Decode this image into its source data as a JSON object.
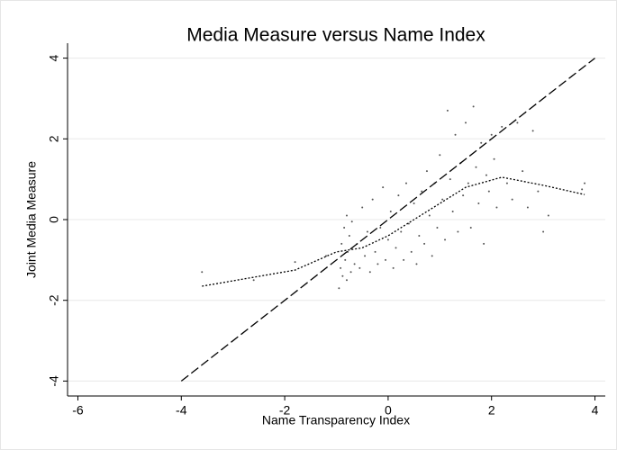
{
  "chart_data": {
    "type": "scatter",
    "title": "Media Measure versus Name Index",
    "xlabel": "Name Transparency Index",
    "ylabel": "Joint Media Measure",
    "xlim": [
      -6.2,
      4.2
    ],
    "ylim": [
      -4.37,
      4.37
    ],
    "xticks": [
      -6,
      -4,
      -2,
      0,
      2,
      4
    ],
    "yticks": [
      -4,
      -2,
      0,
      2,
      4
    ],
    "grid": true,
    "series": [
      {
        "type": "scatter",
        "color": "#555555",
        "x": [
          -3.6,
          -2.6,
          -1.8,
          -1.2,
          -0.95,
          -0.92,
          -0.9,
          -0.88,
          -0.85,
          -0.83,
          -0.8,
          -0.8,
          -0.78,
          -0.75,
          -0.72,
          -0.7,
          -0.65,
          -0.6,
          -0.55,
          -0.5,
          -0.45,
          -0.4,
          -0.35,
          -0.3,
          -0.25,
          -0.2,
          -0.15,
          -0.1,
          -0.05,
          0,
          0.05,
          0.1,
          0.15,
          0.2,
          0.25,
          0.3,
          0.35,
          0.4,
          0.45,
          0.5,
          0.55,
          0.6,
          0.65,
          0.7,
          0.75,
          0.8,
          0.85,
          0.9,
          0.95,
          1.0,
          1.05,
          1.1,
          1.15,
          1.2,
          1.25,
          1.3,
          1.35,
          1.4,
          1.45,
          1.5,
          1.55,
          1.6,
          1.65,
          1.7,
          1.75,
          1.8,
          1.85,
          1.9,
          1.95,
          2.0,
          2.05,
          2.1,
          2.2,
          2.3,
          2.4,
          2.5,
          2.6,
          2.7,
          2.8,
          2.9,
          3.0,
          3.1,
          3.8,
          3.75
        ],
        "values": [
          -1.3,
          -1.5,
          -1.05,
          -0.9,
          -1.7,
          -1.2,
          -0.6,
          -1.4,
          -0.2,
          -1.0,
          0.1,
          -1.5,
          -0.8,
          -0.4,
          -1.3,
          -0.05,
          -1.1,
          -0.6,
          -1.2,
          0.3,
          -0.9,
          -0.3,
          -1.3,
          0.5,
          -0.8,
          -1.1,
          -0.2,
          0.8,
          -1.0,
          -0.5,
          0.2,
          -1.2,
          -0.7,
          0.6,
          -0.3,
          -1.0,
          0.9,
          -0.1,
          -0.8,
          0.4,
          -1.1,
          -0.4,
          0.7,
          -0.6,
          1.2,
          0.1,
          -0.9,
          0.9,
          -0.2,
          1.6,
          0.5,
          -0.5,
          2.7,
          1.0,
          0.2,
          2.1,
          -0.3,
          1.4,
          0.6,
          2.4,
          0.9,
          -0.2,
          2.8,
          1.3,
          0.4,
          1.9,
          -0.6,
          1.1,
          0.7,
          2.1,
          1.5,
          0.3,
          2.3,
          0.9,
          0.5,
          2.4,
          1.2,
          0.3,
          2.2,
          0.7,
          -0.3,
          0.1,
          0.9,
          0.75
        ]
      },
      {
        "type": "line",
        "color": "#000000",
        "dash": "dashed",
        "x": [
          -4,
          4
        ],
        "values": [
          -4,
          4
        ]
      },
      {
        "type": "line",
        "color": "#000000",
        "dash": "dotted",
        "x": [
          -3.6,
          -1.8,
          -1,
          -0.5,
          0,
          0.5,
          1,
          1.5,
          2.2,
          3,
          3.8
        ],
        "values": [
          -1.65,
          -1.25,
          -0.8,
          -0.7,
          -0.4,
          0,
          0.4,
          0.8,
          1.05,
          0.85,
          0.62
        ]
      }
    ]
  }
}
